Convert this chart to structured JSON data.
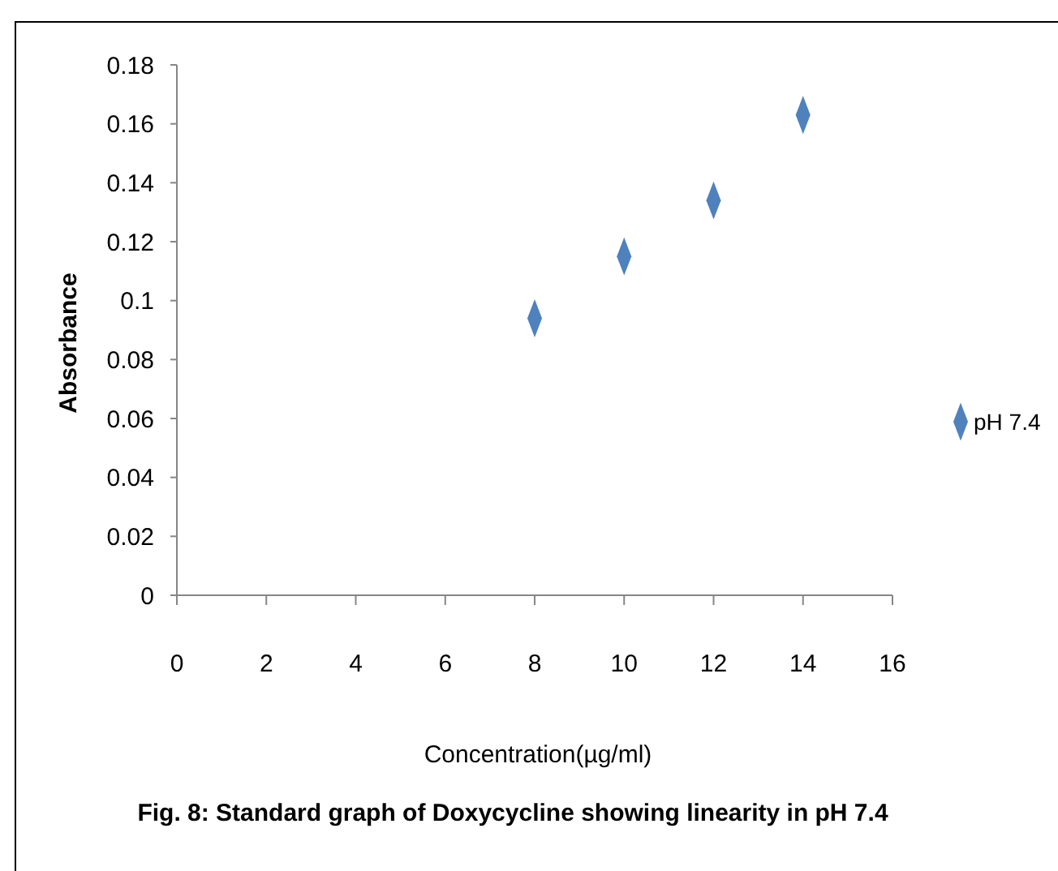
{
  "chart_data": {
    "type": "scatter",
    "xlabel": "Concentration(µg/ml)",
    "ylabel": "Absorbance",
    "x": [
      8,
      10,
      12,
      14
    ],
    "series": [
      {
        "name": "pH 7.4",
        "color": "#4f81bd",
        "values": [
          0.094,
          0.115,
          0.134,
          0.163
        ]
      }
    ],
    "xlim": [
      0,
      16
    ],
    "xticks": [
      0,
      2,
      4,
      6,
      8,
      10,
      12,
      14,
      16
    ],
    "ylim": [
      0,
      0.18
    ],
    "yticks": [
      0,
      0.02,
      0.04,
      0.06,
      0.08,
      0.1,
      0.12,
      0.14,
      0.16,
      0.18
    ],
    "marker": "diamond",
    "legend": "right",
    "grid": false,
    "annotations": [
      "Fig. 8: Standard graph of Doxycycline showing linearity in pH 7.4"
    ]
  }
}
